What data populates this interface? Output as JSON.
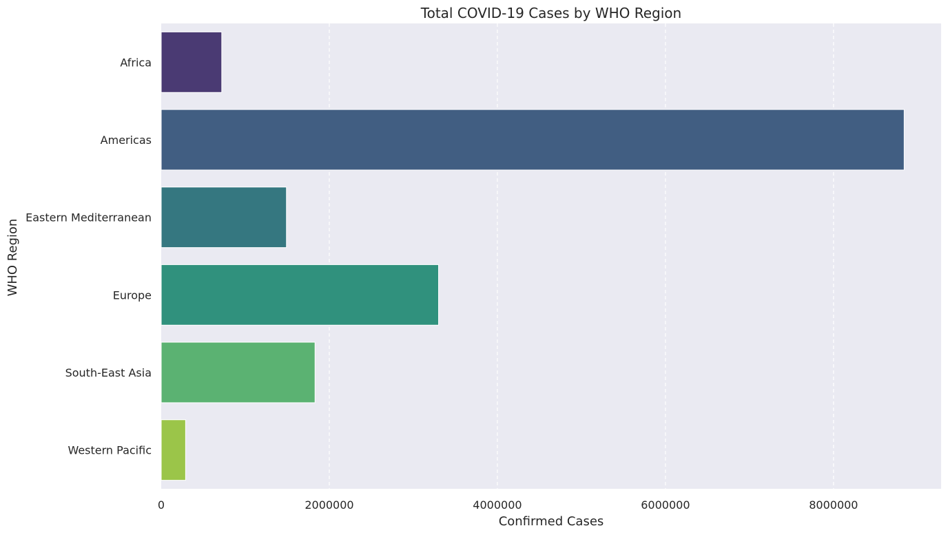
{
  "chart_data": {
    "type": "bar",
    "orientation": "horizontal",
    "title": "Total COVID-19 Cases by WHO Region",
    "xlabel": "Confirmed Cases",
    "ylabel": "WHO Region",
    "xlim": [
      0,
      9280000
    ],
    "x_ticks": [
      0,
      2000000,
      4000000,
      6000000,
      8000000
    ],
    "x_tick_labels": [
      "0",
      "2000000",
      "4000000",
      "6000000",
      "8000000"
    ],
    "grid": "x-axis dashed",
    "categories": [
      "Africa",
      "Americas",
      "Eastern Mediterranean",
      "Europe",
      "South-East Asia",
      "Western Pacific"
    ],
    "values": [
      720000,
      8840000,
      1490000,
      3300000,
      1830000,
      290000
    ],
    "colors": [
      "#4a3a73",
      "#415e82",
      "#357780",
      "#30917d",
      "#5bb272",
      "#9bc549"
    ],
    "background_color": "#eaeaf2"
  }
}
